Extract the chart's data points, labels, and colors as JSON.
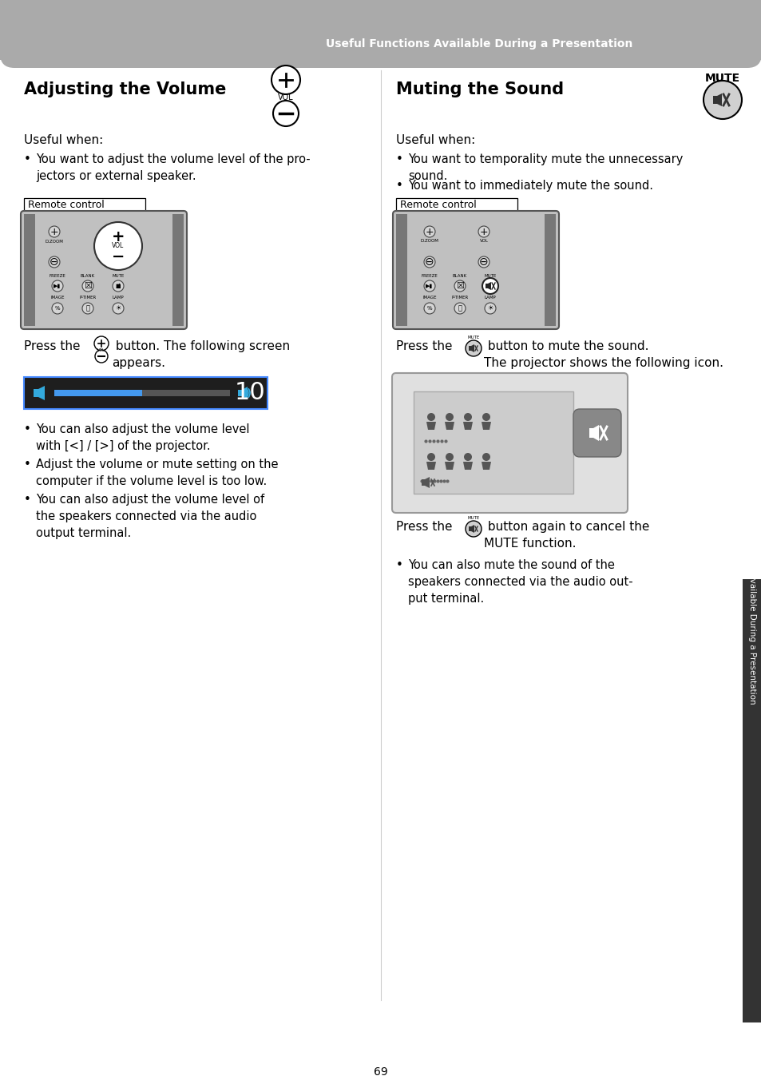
{
  "header_text": "Useful Functions Available During a Presentation",
  "page_bg": "#ffffff",
  "left_title": "Adjusting the Volume",
  "right_title": "Muting the Sound",
  "right_title_label": "MUTE",
  "left_useful_when": "Useful when:",
  "right_useful_when": "Useful when:",
  "left_bullet1": "You want to adjust the volume level of the pro-\njectors or external speaker.",
  "right_bullet1": "You want to temporality mute the unnecessary\nsound.",
  "right_bullet2": "You want to immediately mute the sound.",
  "remote_control_label": "Remote control",
  "left_press1": "Press the",
  "left_press2": " button. The following screen\nappears.",
  "right_press1": "Press the",
  "right_press2": " button to mute the sound.\nThe projector shows the following icon.",
  "right_cancel1": "Press the",
  "right_cancel2": " button again to cancel the\nMUTE function.",
  "right_extra": "You can also mute the sound of the\nspeakers connected via the audio out-\nput terminal.",
  "left_extra1": "You can also adjust the volume level\nwith [<] / [>] of the projector.",
  "left_extra2": "Adjust the volume or mute setting on the\ncomputer if the volume level is too low.",
  "left_extra3": "You can also adjust the volume level of\nthe speakers connected via the audio\noutput terminal.",
  "page_number": "69",
  "sidebar_text": "Useful Functions Available During a Presentation"
}
